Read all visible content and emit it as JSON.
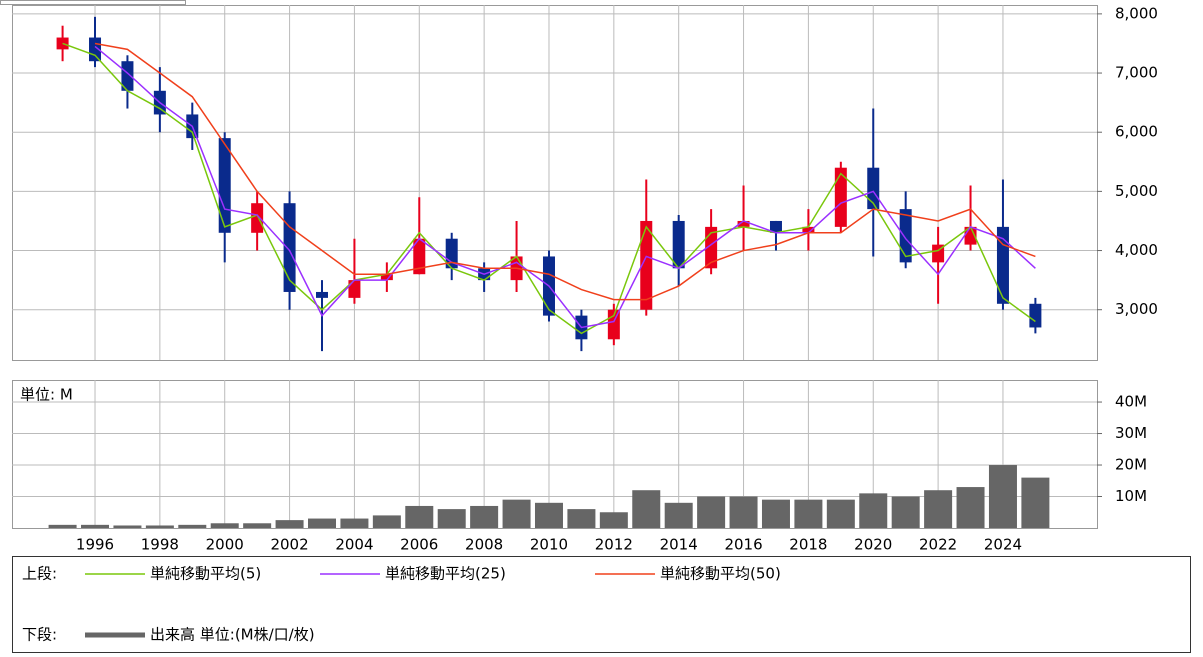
{
  "chart_data": [
    {
      "type": "candlestick",
      "x": [
        1995,
        1996,
        1997,
        1998,
        1999,
        2000,
        2001,
        2002,
        2003,
        2004,
        2005,
        2006,
        2007,
        2008,
        2009,
        2010,
        2011,
        2012,
        2013,
        2014,
        2015,
        2016,
        2017,
        2018,
        2019,
        2020,
        2021,
        2022,
        2023,
        2024,
        2025
      ],
      "open": [
        7400,
        7600,
        7200,
        6700,
        6300,
        5900,
        4300,
        4800,
        3300,
        3200,
        3500,
        3600,
        4200,
        3700,
        3500,
        3900,
        2900,
        2500,
        3000,
        4500,
        3700,
        4400,
        4500,
        4300,
        4400,
        5400,
        4700,
        3800,
        4100,
        4400,
        3100
      ],
      "high": [
        7800,
        7950,
        7300,
        7100,
        6500,
        6000,
        5000,
        5000,
        3500,
        4200,
        3800,
        4900,
        4300,
        3800,
        4500,
        4000,
        3000,
        3100,
        5200,
        4600,
        4700,
        5100,
        4500,
        4700,
        5500,
        6400,
        5000,
        4400,
        5100,
        5200,
        3200
      ],
      "low": [
        7200,
        7100,
        6400,
        6000,
        5700,
        3800,
        4000,
        3000,
        2300,
        3100,
        3300,
        3600,
        3500,
        3300,
        3300,
        2800,
        2300,
        2400,
        2900,
        3400,
        3600,
        4000,
        4000,
        4000,
        4300,
        3900,
        3700,
        3100,
        4000,
        3000,
        2600
      ],
      "close": [
        7600,
        7200,
        6700,
        6300,
        5900,
        4300,
        4800,
        3300,
        3200,
        3500,
        3600,
        4200,
        3700,
        3500,
        3900,
        2900,
        2500,
        3000,
        4500,
        3700,
        4400,
        4500,
        4300,
        4400,
        5400,
        4700,
        3800,
        4100,
        4400,
        3100,
        2700
      ],
      "up_color": "#e8001c",
      "down_color": "#0a2a8c",
      "series": [
        {
          "name": "単純移動平均(5)",
          "color": "#7ac70c",
          "values": [
            7500,
            7300,
            6700,
            6400,
            6000,
            4400,
            4600,
            3500,
            3000,
            3500,
            3600,
            4300,
            3700,
            3500,
            3900,
            3000,
            2600,
            2900,
            4400,
            3700,
            4300,
            4400,
            4300,
            4400,
            5300,
            4800,
            3900,
            4000,
            4400,
            3200,
            2800
          ]
        },
        {
          "name": "単純移動平均(25)",
          "color": "#9b30ff",
          "values": [
            null,
            7450,
            7000,
            6500,
            6100,
            4700,
            4600,
            4000,
            2900,
            3500,
            3500,
            4200,
            3800,
            3600,
            3800,
            3400,
            2700,
            2800,
            3900,
            3700,
            4100,
            4500,
            4300,
            4300,
            4800,
            5000,
            4200,
            3600,
            4400,
            4200,
            3700
          ]
        },
        {
          "name": "単純移動平均(50)",
          "color": "#f0401c",
          "values": [
            null,
            7500,
            7400,
            7000,
            6600,
            5800,
            5000,
            4400,
            4000,
            3600,
            3600,
            3700,
            3800,
            3700,
            3700,
            3600,
            3340,
            3170,
            3170,
            3400,
            3800,
            4000,
            4100,
            4300,
            4300,
            4700,
            4600,
            4500,
            4700,
            4100,
            3900
          ]
        }
      ],
      "ylim": [
        2150,
        8150
      ],
      "yticks": [
        {
          "value": 3000,
          "label": "3,000"
        },
        {
          "value": 4000,
          "label": "4,000"
        },
        {
          "value": 5000,
          "label": "5,000"
        },
        {
          "value": 6000,
          "label": "6,000"
        },
        {
          "value": 7000,
          "label": "7,000"
        },
        {
          "value": 8000,
          "label": "8,000"
        }
      ],
      "legend_label": "上段:"
    },
    {
      "type": "bar",
      "name": "出来高 単位:(M株/口/枚)",
      "unit_label": "単位: M",
      "legend_label": "下段:",
      "color": "#666666",
      "x": [
        1995,
        1996,
        1997,
        1998,
        1999,
        2000,
        2001,
        2002,
        2003,
        2004,
        2005,
        2006,
        2007,
        2008,
        2009,
        2010,
        2011,
        2012,
        2013,
        2014,
        2015,
        2016,
        2017,
        2018,
        2019,
        2020,
        2021,
        2022,
        2023,
        2024,
        2025
      ],
      "values": [
        1,
        1,
        0.8,
        0.8,
        1,
        1.5,
        1.5,
        2.5,
        3,
        3,
        4,
        7,
        6,
        7,
        9,
        8,
        6,
        5,
        12,
        8,
        10,
        10,
        9,
        9,
        9,
        11,
        10,
        12,
        13,
        20,
        16
      ],
      "ylim": [
        0,
        47
      ],
      "yticks": [
        {
          "value": 10,
          "label": "10M"
        },
        {
          "value": 20,
          "label": "20M"
        },
        {
          "value": 30,
          "label": "30M"
        },
        {
          "value": 40,
          "label": "40M"
        }
      ],
      "xlim": [
        1993.44,
        2026.9
      ],
      "xticks": [
        1996,
        1998,
        2000,
        2002,
        2004,
        2006,
        2008,
        2010,
        2012,
        2014,
        2016,
        2018,
        2020,
        2022,
        2024
      ]
    }
  ]
}
